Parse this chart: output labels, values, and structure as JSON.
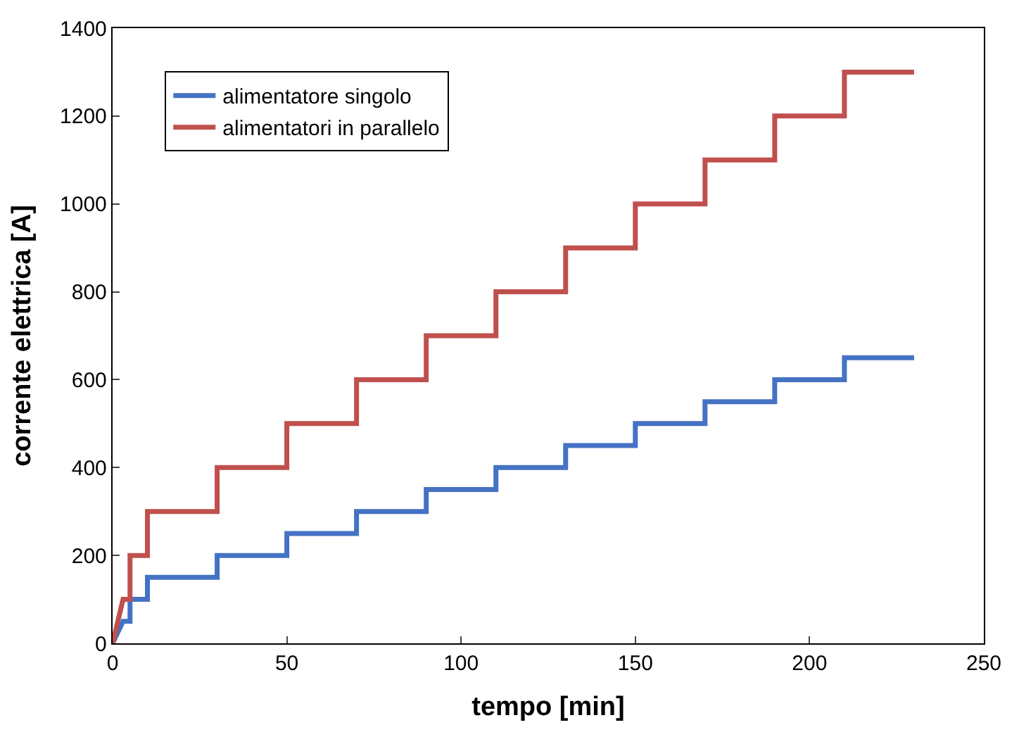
{
  "chart_data": {
    "type": "line",
    "xlabel": "tempo [min]",
    "ylabel": "corrente elettrica [A]",
    "xlim": [
      0,
      250
    ],
    "xticks": [
      0,
      50,
      100,
      150,
      200,
      250
    ],
    "ylim": [
      0,
      1400
    ],
    "yticks": [
      0,
      200,
      400,
      600,
      800,
      1000,
      1200,
      1400
    ],
    "legend": "top left",
    "marker": "none",
    "line_style": "solid",
    "series": [
      {
        "name": "alimentatore singolo",
        "color": "#4472c4",
        "x": [
          0,
          3,
          5,
          5,
          10,
          10,
          30,
          30,
          50,
          50,
          70,
          70,
          90,
          90,
          110,
          110,
          130,
          130,
          150,
          150,
          170,
          170,
          190,
          190,
          210,
          210,
          230
        ],
        "values": [
          0,
          50,
          50,
          100,
          100,
          150,
          150,
          200,
          200,
          250,
          250,
          300,
          300,
          350,
          350,
          400,
          400,
          450,
          450,
          500,
          500,
          550,
          550,
          600,
          600,
          650,
          650
        ]
      },
      {
        "name": "alimentatori in parallelo",
        "color": "#c0504d",
        "x": [
          0,
          3,
          5,
          5,
          10,
          10,
          30,
          30,
          50,
          50,
          70,
          70,
          90,
          90,
          110,
          110,
          130,
          130,
          150,
          150,
          170,
          170,
          190,
          190,
          210,
          210,
          230
        ],
        "values": [
          0,
          100,
          100,
          200,
          200,
          300,
          300,
          400,
          400,
          500,
          500,
          600,
          600,
          700,
          700,
          800,
          800,
          900,
          900,
          1000,
          1000,
          1100,
          1100,
          1200,
          1200,
          1300,
          1300
        ]
      }
    ]
  }
}
